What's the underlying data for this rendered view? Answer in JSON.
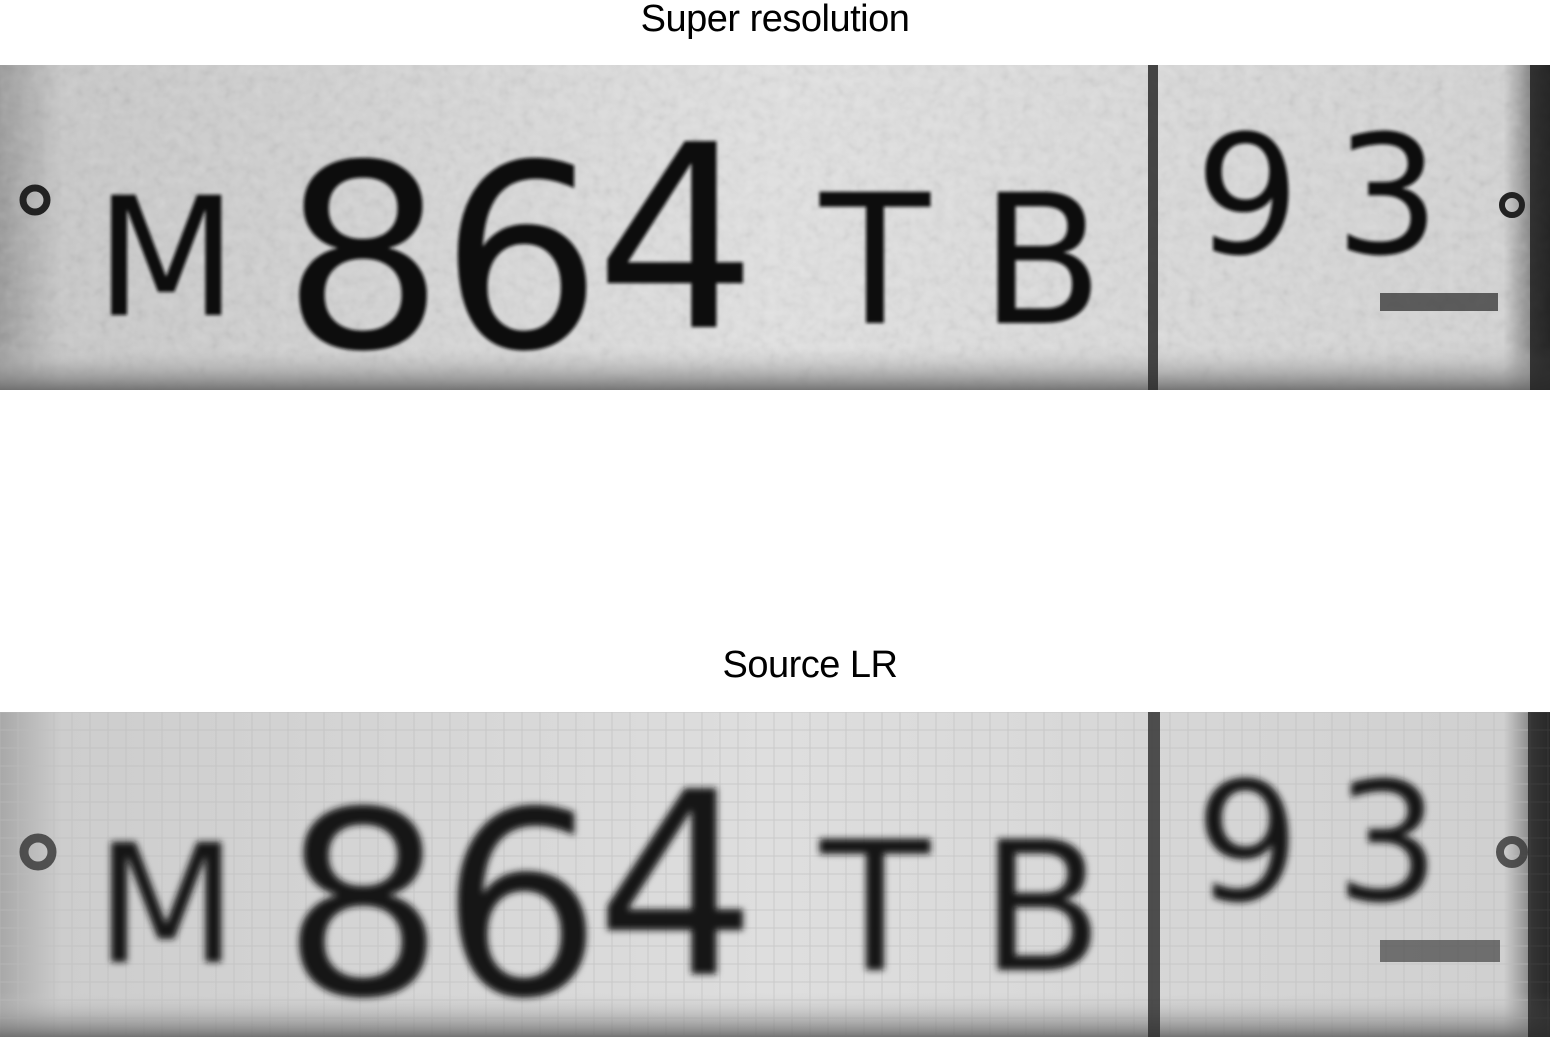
{
  "panels": [
    {
      "title": "Super resolution",
      "plate": {
        "main": [
          "M",
          "8",
          "6",
          "4",
          "T",
          "B"
        ],
        "region": [
          "9",
          "3"
        ]
      }
    },
    {
      "title": "Source LR",
      "plate": {
        "main": [
          "M",
          "8",
          "6",
          "4",
          "T",
          "B"
        ],
        "region": [
          "9",
          "3"
        ]
      }
    }
  ],
  "colors": {
    "background": "#ffffff",
    "plate_light": "#dcdcdc",
    "plate_dark": "#7a7a7a",
    "glyph": "#111111"
  }
}
